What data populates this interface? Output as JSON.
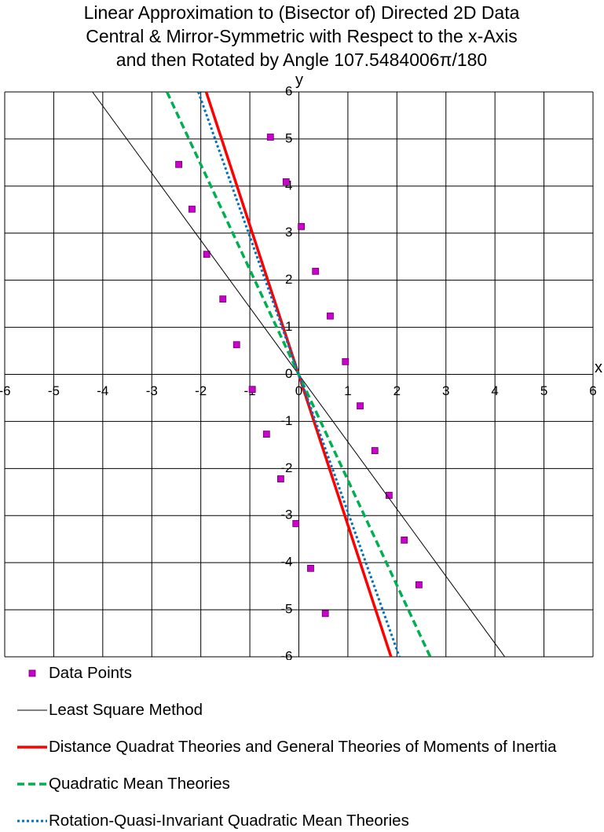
{
  "chart_data": {
    "type": "scatter",
    "title": [
      "Linear Approximation to (Bisector of) Directed 2D Data",
      "Central & Mirror-Symmetric with Respect to the x-Axis",
      "and then Rotated by Angle 107.5484006π/180"
    ],
    "x_label": "x",
    "y_label": "y",
    "xlim": [
      -6,
      6
    ],
    "ylim": [
      -6,
      6
    ],
    "xticks": [
      -6,
      -5,
      -4,
      -3,
      -2,
      -1,
      0,
      1,
      2,
      3,
      4,
      5,
      6
    ],
    "yticks": [
      -6,
      -5,
      -4,
      -3,
      -2,
      -1,
      0,
      1,
      2,
      3,
      4,
      5,
      6
    ],
    "grid": true,
    "series": [
      {
        "name": "Data Points",
        "color": "#cc00cc",
        "style": "markers",
        "x": [
          -2.45,
          -2.18,
          -1.88,
          -1.55,
          -1.27,
          -0.95,
          -0.66,
          -0.37,
          -0.06,
          0.24,
          0.54,
          -0.58,
          -0.26,
          0.05,
          0.34,
          0.64,
          0.95,
          1.25,
          1.55,
          1.84,
          2.15,
          2.45
        ],
        "y": [
          4.46,
          3.51,
          2.55,
          1.6,
          0.63,
          -0.32,
          -1.27,
          -2.22,
          -3.17,
          -4.12,
          -5.08,
          5.04,
          4.09,
          3.14,
          2.19,
          1.24,
          0.27,
          -0.67,
          -1.62,
          -2.57,
          -3.52,
          -4.47
        ]
      },
      {
        "name": "Least Square Method",
        "color": "#000000",
        "style": "solid",
        "width": 1,
        "x": [
          -4.21,
          4.2
        ],
        "y": [
          6,
          -6
        ]
      },
      {
        "name": "Distance Quadrat Theories and General Theories of Moments of Inertia",
        "color": "#ff0000",
        "style": "solid",
        "width": 3.5,
        "x": [
          -1.89,
          1.88
        ],
        "y": [
          6,
          -6
        ]
      },
      {
        "name": "Quadratic Mean Theories",
        "color": "#00b050",
        "style": "dashed",
        "width": 3.5,
        "x": [
          -2.69,
          2.68
        ],
        "y": [
          6,
          -6
        ]
      },
      {
        "name": "Rotation-Quasi-Invariant Quadratic Mean Theories",
        "color": "#0070c0",
        "style": "dotted",
        "width": 3,
        "x": [
          -2.05,
          2.05
        ],
        "y": [
          6,
          -6
        ]
      }
    ]
  }
}
